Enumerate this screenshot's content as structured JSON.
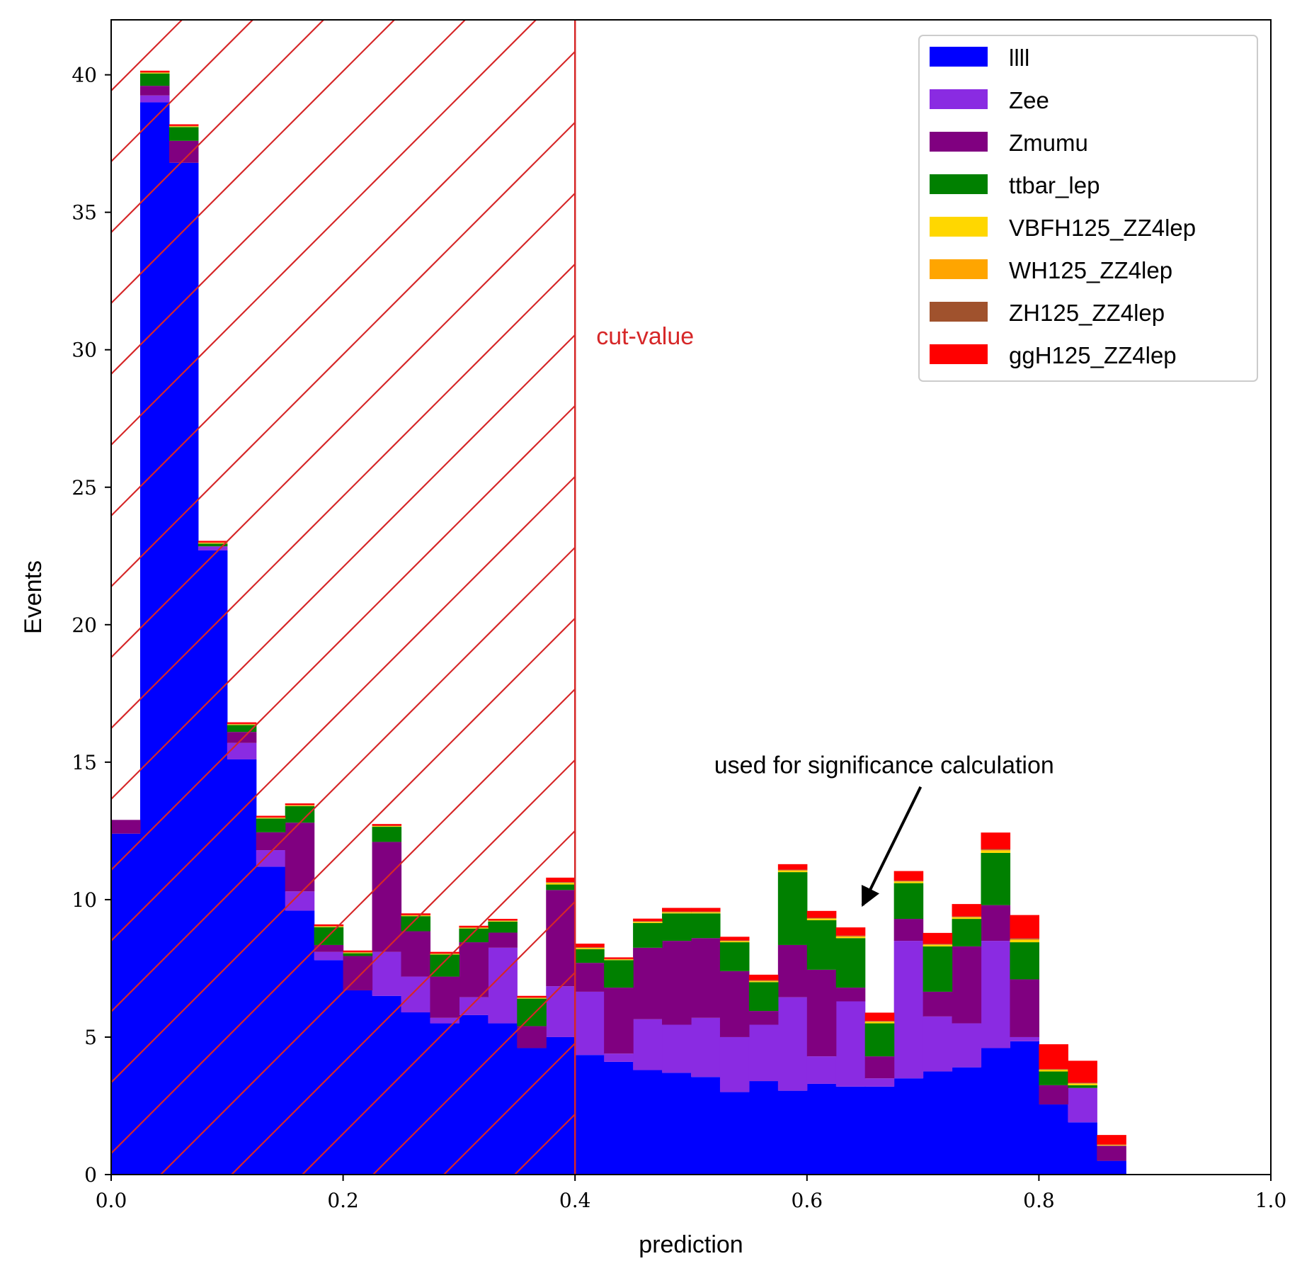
{
  "chart_data": {
    "type": "bar",
    "stacked": true,
    "xlabel": "prediction",
    "ylabel": "Events",
    "xlim": [
      0.0,
      1.0
    ],
    "ylim": [
      0,
      42
    ],
    "xticks": [
      "0.0",
      "0.2",
      "0.4",
      "0.6",
      "0.8",
      "1.0"
    ],
    "yticks": [
      "0",
      "5",
      "10",
      "15",
      "20",
      "25",
      "30",
      "35",
      "40"
    ],
    "grid": false,
    "legend_position": "top-right",
    "bin_edges": [
      0.0,
      0.025,
      0.05,
      0.075,
      0.1,
      0.125,
      0.15,
      0.175,
      0.2,
      0.225,
      0.25,
      0.275,
      0.3,
      0.325,
      0.35,
      0.375,
      0.4,
      0.425,
      0.45,
      0.475,
      0.5,
      0.525,
      0.55,
      0.575,
      0.6,
      0.625,
      0.65,
      0.675,
      0.7,
      0.725,
      0.75,
      0.775,
      0.8,
      0.825,
      0.85,
      0.875,
      0.9,
      0.925,
      0.95,
      0.975,
      1.0
    ],
    "series": [
      {
        "name": "llll",
        "color": "#0000ff",
        "values": [
          12.4,
          39.0,
          36.8,
          22.7,
          15.1,
          11.2,
          9.6,
          7.8,
          6.7,
          6.5,
          5.9,
          5.5,
          5.8,
          5.5,
          4.6,
          5.0,
          4.35,
          4.1,
          3.8,
          3.7,
          3.55,
          3.0,
          3.4,
          3.05,
          3.3,
          3.2,
          3.2,
          3.5,
          3.75,
          3.9,
          4.6,
          4.85,
          2.55,
          1.9,
          0.5,
          0,
          0,
          0,
          0,
          0
        ]
      },
      {
        "name": "Zee",
        "color": "#8a2be2",
        "values": [
          0,
          0.25,
          0,
          0.15,
          0.6,
          0.6,
          0.7,
          0.3,
          0,
          1.6,
          1.3,
          0.2,
          0.65,
          2.75,
          0,
          1.85,
          2.3,
          0.3,
          1.85,
          1.75,
          2.15,
          2.0,
          2.05,
          3.4,
          1.0,
          3.1,
          0.3,
          5.0,
          2.0,
          1.6,
          3.9,
          0.15,
          0,
          1.25,
          0,
          0,
          0,
          0,
          0,
          0
        ]
      },
      {
        "name": "Zmumu",
        "color": "#800080",
        "values": [
          0.5,
          0.35,
          0.8,
          0,
          0.4,
          0.65,
          2.5,
          0.25,
          1.25,
          4.0,
          1.65,
          1.5,
          2.0,
          0.55,
          0.8,
          3.5,
          1.05,
          2.4,
          2.6,
          3.05,
          2.9,
          2.4,
          0.5,
          1.9,
          3.15,
          0.5,
          0.8,
          0.8,
          0.9,
          2.8,
          1.3,
          2.1,
          0.7,
          0,
          0.55,
          0,
          0,
          0,
          0,
          0
        ]
      },
      {
        "name": "ttbar_lep",
        "color": "#008000",
        "values": [
          0,
          0.45,
          0.5,
          0.1,
          0.25,
          0.5,
          0.6,
          0.65,
          0.1,
          0.55,
          0.55,
          0.8,
          0.5,
          0.4,
          1.0,
          0.2,
          0.5,
          1.0,
          0.9,
          1.0,
          0.9,
          1.05,
          1.05,
          2.65,
          1.8,
          1.8,
          1.2,
          1.3,
          1.65,
          1.0,
          1.9,
          1.35,
          0.5,
          0.1,
          0,
          0,
          0,
          0,
          0,
          0
        ]
      },
      {
        "name": "VBFH125_ZZ4lep",
        "color": "#ffd700",
        "values": [
          0,
          0.02,
          0.02,
          0.02,
          0.02,
          0.02,
          0.02,
          0.02,
          0.02,
          0.02,
          0.02,
          0.02,
          0.02,
          0.02,
          0.02,
          0.05,
          0.03,
          0.02,
          0.03,
          0.03,
          0.03,
          0.03,
          0.03,
          0.05,
          0.05,
          0.05,
          0.05,
          0.05,
          0.05,
          0.05,
          0.08,
          0.08,
          0.05,
          0.05,
          0.02,
          0,
          0,
          0,
          0,
          0
        ]
      },
      {
        "name": "WH125_ZZ4lep",
        "color": "#ffa500",
        "values": [
          0,
          0.01,
          0.01,
          0.01,
          0.01,
          0.01,
          0.01,
          0.01,
          0.01,
          0.01,
          0.01,
          0.01,
          0.01,
          0.01,
          0.01,
          0.02,
          0.02,
          0.01,
          0.02,
          0.02,
          0.02,
          0.02,
          0.02,
          0.02,
          0.02,
          0.02,
          0.02,
          0.02,
          0.02,
          0.02,
          0.03,
          0.03,
          0.02,
          0.02,
          0.01,
          0,
          0,
          0,
          0,
          0
        ]
      },
      {
        "name": "ZH125_ZZ4lep",
        "color": "#a0522d",
        "values": [
          0,
          0.01,
          0.01,
          0.01,
          0.01,
          0.01,
          0.01,
          0.01,
          0.01,
          0.01,
          0.01,
          0.01,
          0.01,
          0.01,
          0.01,
          0.02,
          0.02,
          0.01,
          0.02,
          0.02,
          0.02,
          0.02,
          0.02,
          0.02,
          0.02,
          0.02,
          0.02,
          0.02,
          0.02,
          0.02,
          0.03,
          0.03,
          0.02,
          0.02,
          0.01,
          0,
          0,
          0,
          0,
          0
        ]
      },
      {
        "name": "ggH125_ZZ4lep",
        "color": "#ff0000",
        "values": [
          0,
          0.06,
          0.06,
          0.06,
          0.06,
          0.06,
          0.06,
          0.06,
          0.06,
          0.06,
          0.06,
          0.06,
          0.06,
          0.06,
          0.06,
          0.16,
          0.13,
          0.06,
          0.09,
          0.13,
          0.13,
          0.13,
          0.2,
          0.2,
          0.25,
          0.3,
          0.3,
          0.35,
          0.4,
          0.45,
          0.6,
          0.85,
          0.9,
          0.8,
          0.35,
          0,
          0,
          0,
          0,
          0
        ]
      }
    ],
    "annotations": {
      "cut_value": 0.4,
      "cut_label": "cut-value",
      "arrow_text": "used for significance calculation",
      "arrow_target": [
        0.648,
        9.8
      ],
      "arrow_text_pos": [
        0.52,
        14.6
      ]
    }
  }
}
